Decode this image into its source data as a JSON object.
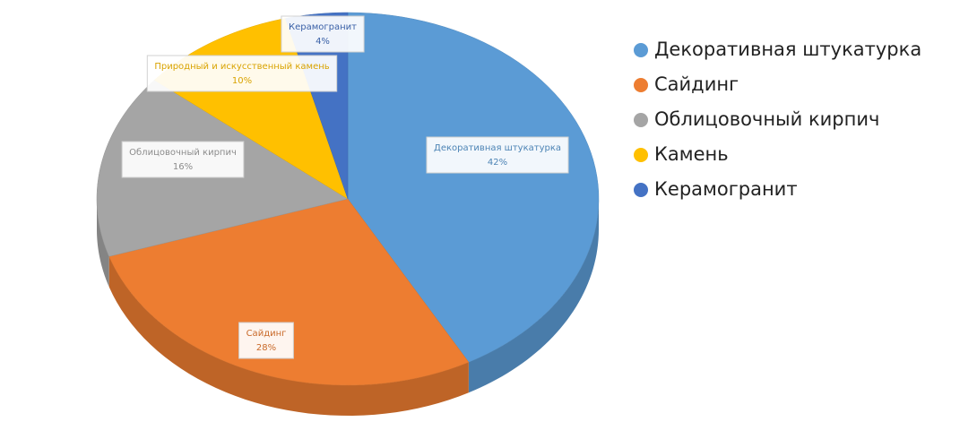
{
  "chart_data": {
    "type": "pie",
    "categories": [
      "Декоративная штукатурка",
      "Сайдинг",
      "Облицовочный кирпич",
      "Камень",
      "Керамогранит"
    ],
    "label_names": [
      "Декоративная штукатурка",
      "Сайдинг",
      "Облицовочный кирпич",
      "Природный и искусственный камень",
      "Керамогранит"
    ],
    "values": [
      42,
      28,
      16,
      10,
      4
    ],
    "value_labels": [
      "42%",
      "28%",
      "16%",
      "10%",
      "4%"
    ],
    "colors": [
      "#5b9bd5",
      "#ed7d31",
      "#a5a5a5",
      "#ffc000",
      "#4472c4"
    ],
    "legend": "right"
  }
}
